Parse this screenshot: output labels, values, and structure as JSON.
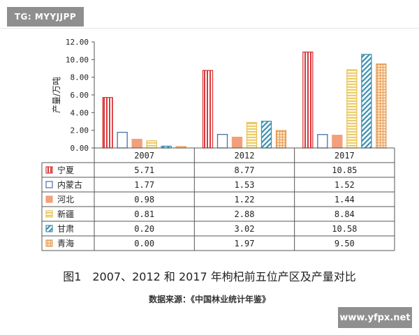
{
  "badges": {
    "top_left": "TG: MYYJJPP",
    "bottom_right": "www.yfpx.net"
  },
  "caption": "图1　2007、2012 和 2017 年枸杞前五位产区及产量对比",
  "source": "数据来源：《中国林业统计年鉴》",
  "chart_data": {
    "type": "bar",
    "ylabel": "产量/万吨",
    "ylim": [
      0,
      12
    ],
    "yticks": [
      "0.00",
      "2.00",
      "4.00",
      "6.00",
      "8.00",
      "10.00",
      "12.00"
    ],
    "categories": [
      "2007",
      "2012",
      "2017"
    ],
    "series": [
      {
        "name": "宁夏",
        "values": [
          5.71,
          8.77,
          10.85
        ],
        "labels": [
          "5.71",
          "8.77",
          "10.85"
        ],
        "color": "#d9383b",
        "pattern": "vlines"
      },
      {
        "name": "内蒙古",
        "values": [
          1.77,
          1.53,
          1.52
        ],
        "labels": [
          "1.77",
          "1.53",
          "1.52"
        ],
        "color": "#4a6fa5",
        "pattern": "none"
      },
      {
        "name": "河北",
        "values": [
          0.98,
          1.22,
          1.44
        ],
        "labels": [
          "0.98",
          "1.22",
          "1.44"
        ],
        "color": "#f2a07b",
        "pattern": "solid"
      },
      {
        "name": "新疆",
        "values": [
          0.81,
          2.88,
          8.84
        ],
        "labels": [
          "0.81",
          "2.88",
          "8.84"
        ],
        "color": "#e6c25a",
        "pattern": "hlines"
      },
      {
        "name": "甘肃",
        "values": [
          0.2,
          3.02,
          10.58
        ],
        "labels": [
          "0.20",
          "3.02",
          "10.58"
        ],
        "color": "#3a8fb0",
        "pattern": "diag"
      },
      {
        "name": "青海",
        "values": [
          0.0,
          1.97,
          9.5
        ],
        "labels": [
          "0.00",
          "1.97",
          "9.50"
        ],
        "color": "#e8a05a",
        "pattern": "grid"
      }
    ]
  }
}
